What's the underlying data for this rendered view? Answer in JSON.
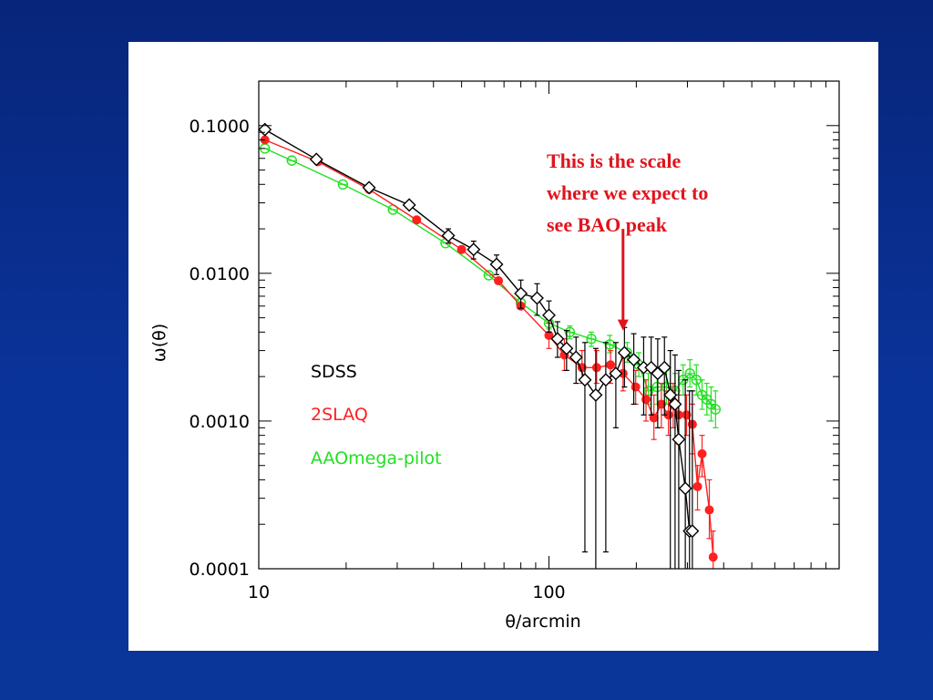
{
  "colors": {
    "background": "#0a2f96",
    "panel": "#ffffff",
    "sdss": "#000000",
    "twoslaq": "#ff2020",
    "aaomega": "#22e022",
    "annotation": "#e0141c"
  },
  "chart_data": {
    "type": "line",
    "title": "",
    "xlabel": "θ/arcmin",
    "ylabel": "ω(θ)",
    "xscale": "log",
    "yscale": "log",
    "xlim": [
      10,
      1000
    ],
    "ylim": [
      0.0001,
      0.2
    ],
    "x_ticks": [
      {
        "value": 10,
        "label": "10"
      },
      {
        "value": 100,
        "label": "100"
      }
    ],
    "y_ticks": [
      {
        "value": 0.0001,
        "label": "0.0001"
      },
      {
        "value": 0.001,
        "label": "0.0010"
      },
      {
        "value": 0.01,
        "label": "0.0100"
      },
      {
        "value": 0.1,
        "label": "0.1000"
      }
    ],
    "grid": false,
    "legend": {
      "placement": "left-middle"
    },
    "series": [
      {
        "name": "SDSS",
        "color": "#000000",
        "marker": "diamond",
        "points": [
          {
            "x": 10.5,
            "y": 0.094,
            "lo": 0.094,
            "hi": 0.094
          },
          {
            "x": 15.8,
            "y": 0.059,
            "lo": 0.059,
            "hi": 0.059
          },
          {
            "x": 24,
            "y": 0.038,
            "lo": 0.038,
            "hi": 0.038
          },
          {
            "x": 33,
            "y": 0.029,
            "lo": 0.029,
            "hi": 0.029
          },
          {
            "x": 45,
            "y": 0.018,
            "lo": 0.016,
            "hi": 0.02
          },
          {
            "x": 55,
            "y": 0.0145,
            "lo": 0.0125,
            "hi": 0.0165
          },
          {
            "x": 66,
            "y": 0.0115,
            "lo": 0.0098,
            "hi": 0.0133
          },
          {
            "x": 80,
            "y": 0.0073,
            "lo": 0.0058,
            "hi": 0.009
          },
          {
            "x": 91,
            "y": 0.0068,
            "lo": 0.0052,
            "hi": 0.0085
          },
          {
            "x": 100,
            "y": 0.0052,
            "lo": 0.004,
            "hi": 0.0065
          },
          {
            "x": 107,
            "y": 0.0036,
            "lo": 0.0027,
            "hi": 0.0047
          },
          {
            "x": 115,
            "y": 0.0031,
            "lo": 0.0022,
            "hi": 0.0041
          },
          {
            "x": 124,
            "y": 0.0027,
            "lo": 0.0018,
            "hi": 0.0037
          },
          {
            "x": 133,
            "y": 0.0019,
            "lo": 0.00013,
            "hi": 0.0034
          },
          {
            "x": 145,
            "y": 0.0015,
            "lo": 0.0001,
            "hi": 0.0031
          },
          {
            "x": 157,
            "y": 0.0019,
            "lo": 0.00013,
            "hi": 0.0034
          },
          {
            "x": 170,
            "y": 0.0021,
            "lo": 0.0009,
            "hi": 0.0034
          },
          {
            "x": 182,
            "y": 0.0029,
            "lo": 0.0017,
            "hi": 0.0043
          },
          {
            "x": 196,
            "y": 0.0026,
            "lo": 0.0013,
            "hi": 0.0039
          },
          {
            "x": 212,
            "y": 0.0023,
            "lo": 0.0011,
            "hi": 0.0037
          },
          {
            "x": 225,
            "y": 0.0023,
            "lo": 0.0011,
            "hi": 0.0037
          },
          {
            "x": 237,
            "y": 0.0021,
            "lo": 0.0009,
            "hi": 0.0036
          },
          {
            "x": 250,
            "y": 0.0023,
            "lo": 0.0011,
            "hi": 0.0037
          },
          {
            "x": 262,
            "y": 0.0015,
            "lo": 0.0001,
            "hi": 0.003
          },
          {
            "x": 272,
            "y": 0.0013,
            "lo": 0.0001,
            "hi": 0.0028
          },
          {
            "x": 280,
            "y": 0.00075,
            "lo": 0.0001,
            "hi": 0.0022
          },
          {
            "x": 295,
            "y": 0.00035,
            "lo": 0.0001,
            "hi": 0.0019
          },
          {
            "x": 305,
            "y": 0.00018,
            "lo": 0.0001,
            "hi": 0.0016
          },
          {
            "x": 312,
            "y": 0.00018,
            "lo": 0.0001,
            "hi": 0.0016
          }
        ]
      },
      {
        "name": "2SLAQ",
        "color": "#ff2020",
        "marker": "filled-circle",
        "points": [
          {
            "x": 10.5,
            "y": 0.08,
            "lo": 0.08,
            "hi": 0.08
          },
          {
            "x": 16,
            "y": 0.057,
            "lo": 0.057,
            "hi": 0.057
          },
          {
            "x": 24,
            "y": 0.037,
            "lo": 0.037,
            "hi": 0.037
          },
          {
            "x": 35,
            "y": 0.023,
            "lo": 0.023,
            "hi": 0.023
          },
          {
            "x": 50,
            "y": 0.0145,
            "lo": 0.0145,
            "hi": 0.0145
          },
          {
            "x": 67,
            "y": 0.0089,
            "lo": 0.0089,
            "hi": 0.0089
          },
          {
            "x": 80,
            "y": 0.006,
            "lo": 0.006,
            "hi": 0.006
          },
          {
            "x": 100,
            "y": 0.0038,
            "lo": 0.0031,
            "hi": 0.0046
          },
          {
            "x": 113,
            "y": 0.0028,
            "lo": 0.0022,
            "hi": 0.0036
          },
          {
            "x": 130,
            "y": 0.0023,
            "lo": 0.0018,
            "hi": 0.003
          },
          {
            "x": 146,
            "y": 0.0023,
            "lo": 0.0018,
            "hi": 0.003
          },
          {
            "x": 163,
            "y": 0.0024,
            "lo": 0.0018,
            "hi": 0.003
          },
          {
            "x": 180,
            "y": 0.0021,
            "lo": 0.0016,
            "hi": 0.0027
          },
          {
            "x": 199,
            "y": 0.0017,
            "lo": 0.0013,
            "hi": 0.0022
          },
          {
            "x": 216,
            "y": 0.0014,
            "lo": 0.001,
            "hi": 0.0019
          },
          {
            "x": 230,
            "y": 0.00105,
            "lo": 0.00075,
            "hi": 0.0015
          },
          {
            "x": 244,
            "y": 0.0013,
            "lo": 0.0009,
            "hi": 0.0018
          },
          {
            "x": 258,
            "y": 0.0011,
            "lo": 0.0008,
            "hi": 0.0016
          },
          {
            "x": 268,
            "y": 0.0013,
            "lo": 0.0009,
            "hi": 0.0018
          },
          {
            "x": 280,
            "y": 0.0011,
            "lo": 0.0007,
            "hi": 0.0015
          },
          {
            "x": 298,
            "y": 0.0011,
            "lo": 0.0008,
            "hi": 0.0015
          },
          {
            "x": 312,
            "y": 0.00095,
            "lo": 0.0006,
            "hi": 0.0013
          },
          {
            "x": 325,
            "y": 0.00036,
            "lo": 0.00025,
            "hi": 0.0005
          },
          {
            "x": 337,
            "y": 0.0006,
            "lo": 0.00042,
            "hi": 0.0008
          },
          {
            "x": 357,
            "y": 0.00025,
            "lo": 0.00016,
            "hi": 0.0004
          },
          {
            "x": 368,
            "y": 0.00012,
            "lo": 0.0001,
            "hi": 0.00018
          }
        ]
      },
      {
        "name": "AAOmega-pilot",
        "color": "#22e022",
        "marker": "open-circle",
        "points": [
          {
            "x": 10.5,
            "y": 0.07,
            "lo": 0.07,
            "hi": 0.07
          },
          {
            "x": 13,
            "y": 0.058,
            "lo": 0.058,
            "hi": 0.058
          },
          {
            "x": 19.5,
            "y": 0.04,
            "lo": 0.04,
            "hi": 0.04
          },
          {
            "x": 29,
            "y": 0.027,
            "lo": 0.027,
            "hi": 0.027
          },
          {
            "x": 44,
            "y": 0.016,
            "lo": 0.016,
            "hi": 0.016
          },
          {
            "x": 62,
            "y": 0.0097,
            "lo": 0.0097,
            "hi": 0.0097
          },
          {
            "x": 80,
            "y": 0.0063,
            "lo": 0.0063,
            "hi": 0.0063
          },
          {
            "x": 100,
            "y": 0.0046,
            "lo": 0.0042,
            "hi": 0.005
          },
          {
            "x": 118,
            "y": 0.004,
            "lo": 0.0036,
            "hi": 0.0044
          },
          {
            "x": 140,
            "y": 0.0036,
            "lo": 0.0032,
            "hi": 0.004
          },
          {
            "x": 162,
            "y": 0.0033,
            "lo": 0.0029,
            "hi": 0.0038
          },
          {
            "x": 186,
            "y": 0.0029,
            "lo": 0.0025,
            "hi": 0.0034
          },
          {
            "x": 204,
            "y": 0.0024,
            "lo": 0.002,
            "hi": 0.0029
          },
          {
            "x": 220,
            "y": 0.0016,
            "lo": 0.0013,
            "hi": 0.0021
          },
          {
            "x": 236,
            "y": 0.0017,
            "lo": 0.0013,
            "hi": 0.0022
          },
          {
            "x": 254,
            "y": 0.0017,
            "lo": 0.0013,
            "hi": 0.0022
          },
          {
            "x": 272,
            "y": 0.0016,
            "lo": 0.0012,
            "hi": 0.0021
          },
          {
            "x": 290,
            "y": 0.0019,
            "lo": 0.0015,
            "hi": 0.0024
          },
          {
            "x": 306,
            "y": 0.0021,
            "lo": 0.0017,
            "hi": 0.0026
          },
          {
            "x": 322,
            "y": 0.0019,
            "lo": 0.0015,
            "hi": 0.0024
          },
          {
            "x": 337,
            "y": 0.0015,
            "lo": 0.0012,
            "hi": 0.0019
          },
          {
            "x": 350,
            "y": 0.0014,
            "lo": 0.0011,
            "hi": 0.0018
          },
          {
            "x": 362,
            "y": 0.0013,
            "lo": 0.001,
            "hi": 0.0017
          },
          {
            "x": 375,
            "y": 0.0012,
            "lo": 0.0009,
            "hi": 0.0016
          }
        ]
      }
    ],
    "annotation": {
      "lines": [
        "This is the scale",
        "where we expect to",
        "see BAO peak"
      ],
      "arrow_x": 180,
      "arrow_y_top": 0.02,
      "arrow_y_bottom": 0.0041
    }
  }
}
